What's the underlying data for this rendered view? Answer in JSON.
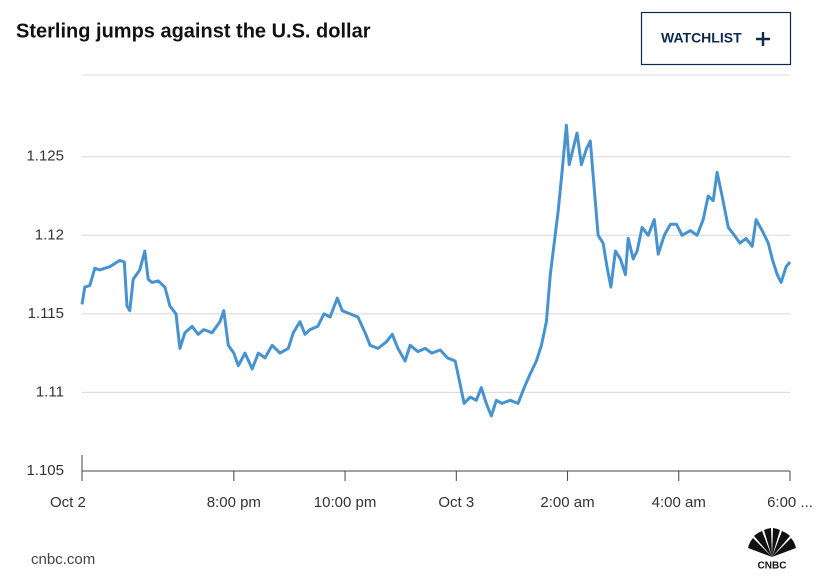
{
  "chart_data": {
    "type": "line",
    "title": "Sterling jumps against the U.S. dollar",
    "button": "WATCHLIST",
    "source": "cnbc.com",
    "logo": "CNBC",
    "grid": true,
    "xlim": [
      0,
      12.73
    ],
    "xticks": [
      {
        "value": 0,
        "label": "Oct 2"
      },
      {
        "value": 2.73,
        "label": "8:00 pm"
      },
      {
        "value": 4.73,
        "label": "10:00 pm"
      },
      {
        "value": 6.73,
        "label": "Oct 3"
      },
      {
        "value": 8.73,
        "label": "2:00 am"
      },
      {
        "value": 10.73,
        "label": "4:00 am"
      },
      {
        "value": 12.73,
        "label": "6:00 ..."
      }
    ],
    "ylim": [
      1.105,
      1.1302
    ],
    "yticks": [
      1.105,
      1.11,
      1.115,
      1.12,
      1.125
    ],
    "x": [
      0,
      0.05,
      0.14,
      0.23,
      0.32,
      0.5,
      0.68,
      0.76,
      0.81,
      0.86,
      0.92,
      1.04,
      1.13,
      1.19,
      1.26,
      1.37,
      1.49,
      1.58,
      1.69,
      1.76,
      1.85,
      1.98,
      2.09,
      2.19,
      2.34,
      2.48,
      2.55,
      2.63,
      2.73,
      2.81,
      2.93,
      3.06,
      3.17,
      3.29,
      3.42,
      3.56,
      3.71,
      3.8,
      3.92,
      4.01,
      4.1,
      4.24,
      4.35,
      4.46,
      4.59,
      4.68,
      4.82,
      4.96,
      5.09,
      5.18,
      5.32,
      5.47,
      5.58,
      5.68,
      5.81,
      5.9,
      6.04,
      6.17,
      6.29,
      6.44,
      6.57,
      6.71,
      6.8,
      6.87,
      6.98,
      7.09,
      7.18,
      7.27,
      7.36,
      7.45,
      7.55,
      7.7,
      7.84,
      7.95,
      8.06,
      8.17,
      8.26,
      8.35,
      8.42,
      8.49,
      8.56,
      8.63,
      8.71,
      8.76,
      8.83,
      8.9,
      8.98,
      9.07,
      9.14,
      9.21,
      9.28,
      9.37,
      9.44,
      9.51,
      9.59,
      9.68,
      9.77,
      9.82,
      9.91,
      9.98,
      10.07,
      10.18,
      10.29,
      10.36,
      10.47,
      10.58,
      10.69,
      10.79,
      10.94,
      11.06,
      11.17,
      11.26,
      11.35,
      11.42,
      11.51,
      11.62,
      11.73,
      11.83,
      11.94,
      12.05,
      12.12,
      12.23,
      12.34,
      12.41,
      12.5,
      12.57,
      12.66,
      12.73
    ],
    "series": [
      {
        "color": "#4693d0",
        "values": [
          1.1156,
          1.1167,
          1.1168,
          1.1179,
          1.1178,
          1.118,
          1.1184,
          1.1183,
          1.1155,
          1.1152,
          1.1172,
          1.1178,
          1.119,
          1.1172,
          1.117,
          1.1171,
          1.1167,
          1.1155,
          1.115,
          1.1128,
          1.1138,
          1.1142,
          1.1137,
          1.114,
          1.1138,
          1.1145,
          1.1152,
          1.113,
          1.1125,
          1.1117,
          1.1125,
          1.1115,
          1.1125,
          1.1122,
          1.113,
          1.1125,
          1.1128,
          1.1138,
          1.1145,
          1.1137,
          1.114,
          1.1142,
          1.115,
          1.1148,
          1.116,
          1.1152,
          1.115,
          1.1148,
          1.1138,
          1.113,
          1.1128,
          1.1132,
          1.1137,
          1.1128,
          1.112,
          1.113,
          1.1126,
          1.1128,
          1.1125,
          1.1127,
          1.1122,
          1.112,
          1.1105,
          1.1093,
          1.1097,
          1.1095,
          1.1103,
          1.1093,
          1.1085,
          1.1095,
          1.1093,
          1.1095,
          1.1093,
          1.1103,
          1.1112,
          1.112,
          1.113,
          1.1145,
          1.1175,
          1.1195,
          1.1215,
          1.124,
          1.127,
          1.1245,
          1.1255,
          1.1265,
          1.1245,
          1.1255,
          1.126,
          1.123,
          1.12,
          1.1195,
          1.118,
          1.1167,
          1.119,
          1.1185,
          1.1175,
          1.1198,
          1.1185,
          1.119,
          1.1205,
          1.12,
          1.121,
          1.1188,
          1.12,
          1.1207,
          1.1207,
          1.12,
          1.1203,
          1.12,
          1.121,
          1.1225,
          1.1222,
          1.124,
          1.1225,
          1.1205,
          1.12,
          1.1195,
          1.1198,
          1.1193,
          1.121,
          1.1203,
          1.1195,
          1.1185,
          1.1175,
          1.117,
          1.118,
          1.1183
        ]
      }
    ]
  }
}
